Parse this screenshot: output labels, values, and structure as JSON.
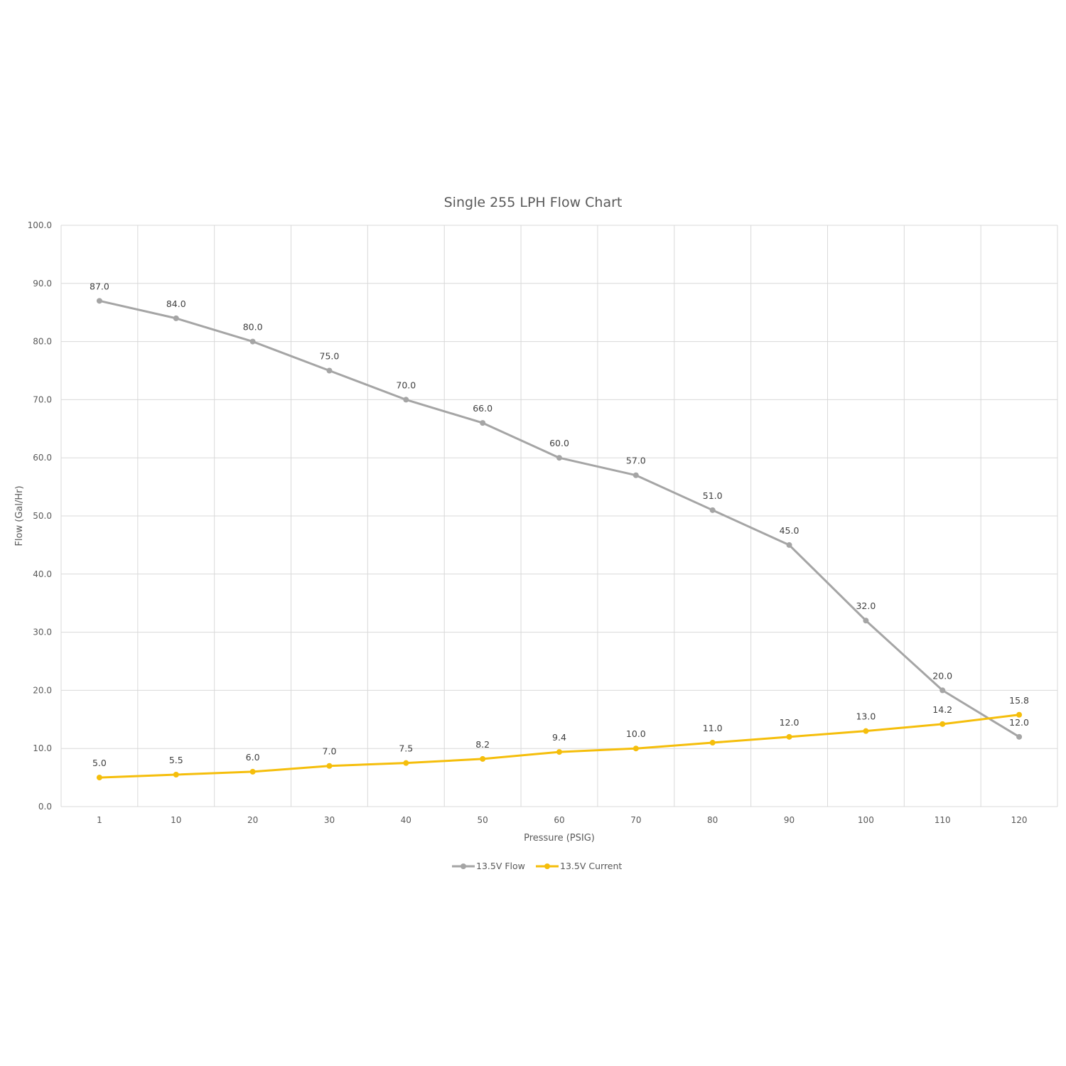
{
  "chart_data": {
    "type": "line",
    "title": "Single 255 LPH Flow Chart",
    "xlabel": "Pressure (PSIG)",
    "ylabel": "Flow (Gal/Hr)",
    "categories": [
      "1",
      "10",
      "20",
      "30",
      "40",
      "50",
      "60",
      "70",
      "80",
      "90",
      "100",
      "110",
      "120"
    ],
    "ylim": [
      0,
      100
    ],
    "yticks": [
      "0.0",
      "10.0",
      "20.0",
      "30.0",
      "40.0",
      "50.0",
      "60.0",
      "70.0",
      "80.0",
      "90.0",
      "100.0"
    ],
    "grid": true,
    "legend_position": "bottom",
    "series": [
      {
        "name": "13.5V Flow",
        "color": "#A5A5A5",
        "values": [
          87.0,
          84.0,
          80.0,
          75.0,
          70.0,
          66.0,
          60.0,
          57.0,
          51.0,
          45.0,
          32.0,
          20.0,
          12.0
        ],
        "labels": [
          "87.0",
          "84.0",
          "80.0",
          "75.0",
          "70.0",
          "66.0",
          "60.0",
          "57.0",
          "51.0",
          "45.0",
          "32.0",
          "20.0",
          "12.0"
        ]
      },
      {
        "name": "13.5V Current",
        "color": "#F5BE0B",
        "values": [
          5.0,
          5.5,
          6.0,
          7.0,
          7.5,
          8.2,
          9.4,
          10.0,
          11.0,
          12.0,
          13.0,
          14.2,
          15.8
        ],
        "labels": [
          "5.0",
          "5.5",
          "6.0",
          "7.0",
          "7.5",
          "8.2",
          "9.4",
          "10.0",
          "11.0",
          "12.0",
          "13.0",
          "14.2",
          "15.8"
        ]
      }
    ]
  }
}
